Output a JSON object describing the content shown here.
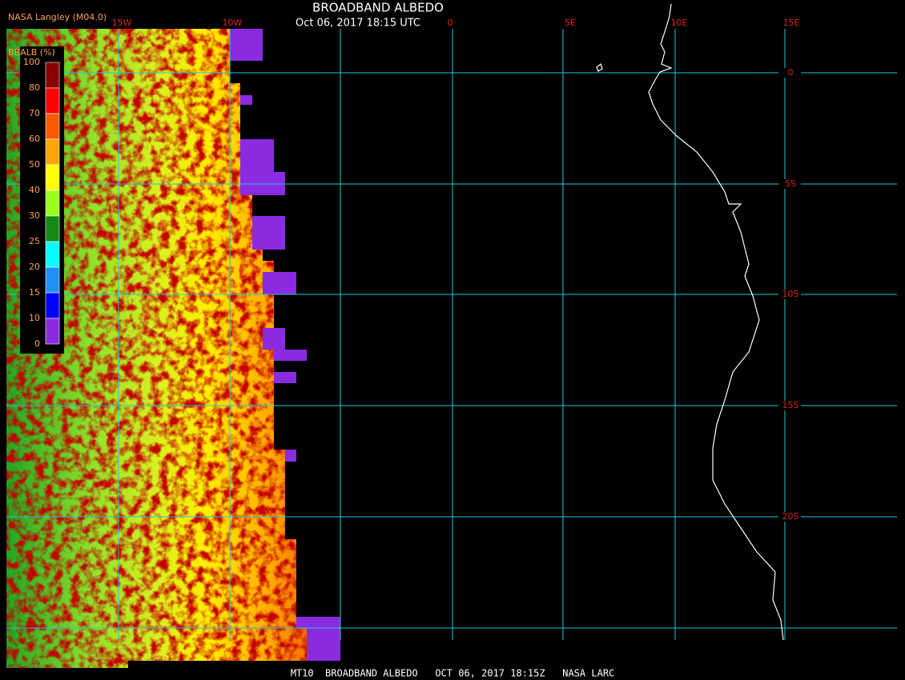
{
  "header": {
    "title": "BROADBAND ALBEDO",
    "subtitle": "Oct 06, 2017 18:15 UTC",
    "source": "NASA Langley (M04.0)"
  },
  "colorbar": {
    "label": "BBALB (%)",
    "ticks": [
      100,
      80,
      70,
      60,
      50,
      40,
      30,
      25,
      20,
      15,
      10,
      0
    ],
    "colors": [
      "#8b0000",
      "#ff0000",
      "#ff5a00",
      "#ffa500",
      "#ffff00",
      "#9aff1a",
      "#138a13",
      "#00ffff",
      "#1e90ff",
      "#0000ff",
      "#8a2be2"
    ]
  },
  "grid": {
    "longitudes": [
      "15W",
      "10W",
      "0",
      "5E",
      "10E",
      "15E"
    ],
    "latitudes": [
      "0",
      "5S",
      "10S",
      "15S",
      "20S"
    ]
  },
  "footer": "MT10  BROADBAND ALBEDO   OCT 06, 2017 18:15Z   NASA LARC"
}
